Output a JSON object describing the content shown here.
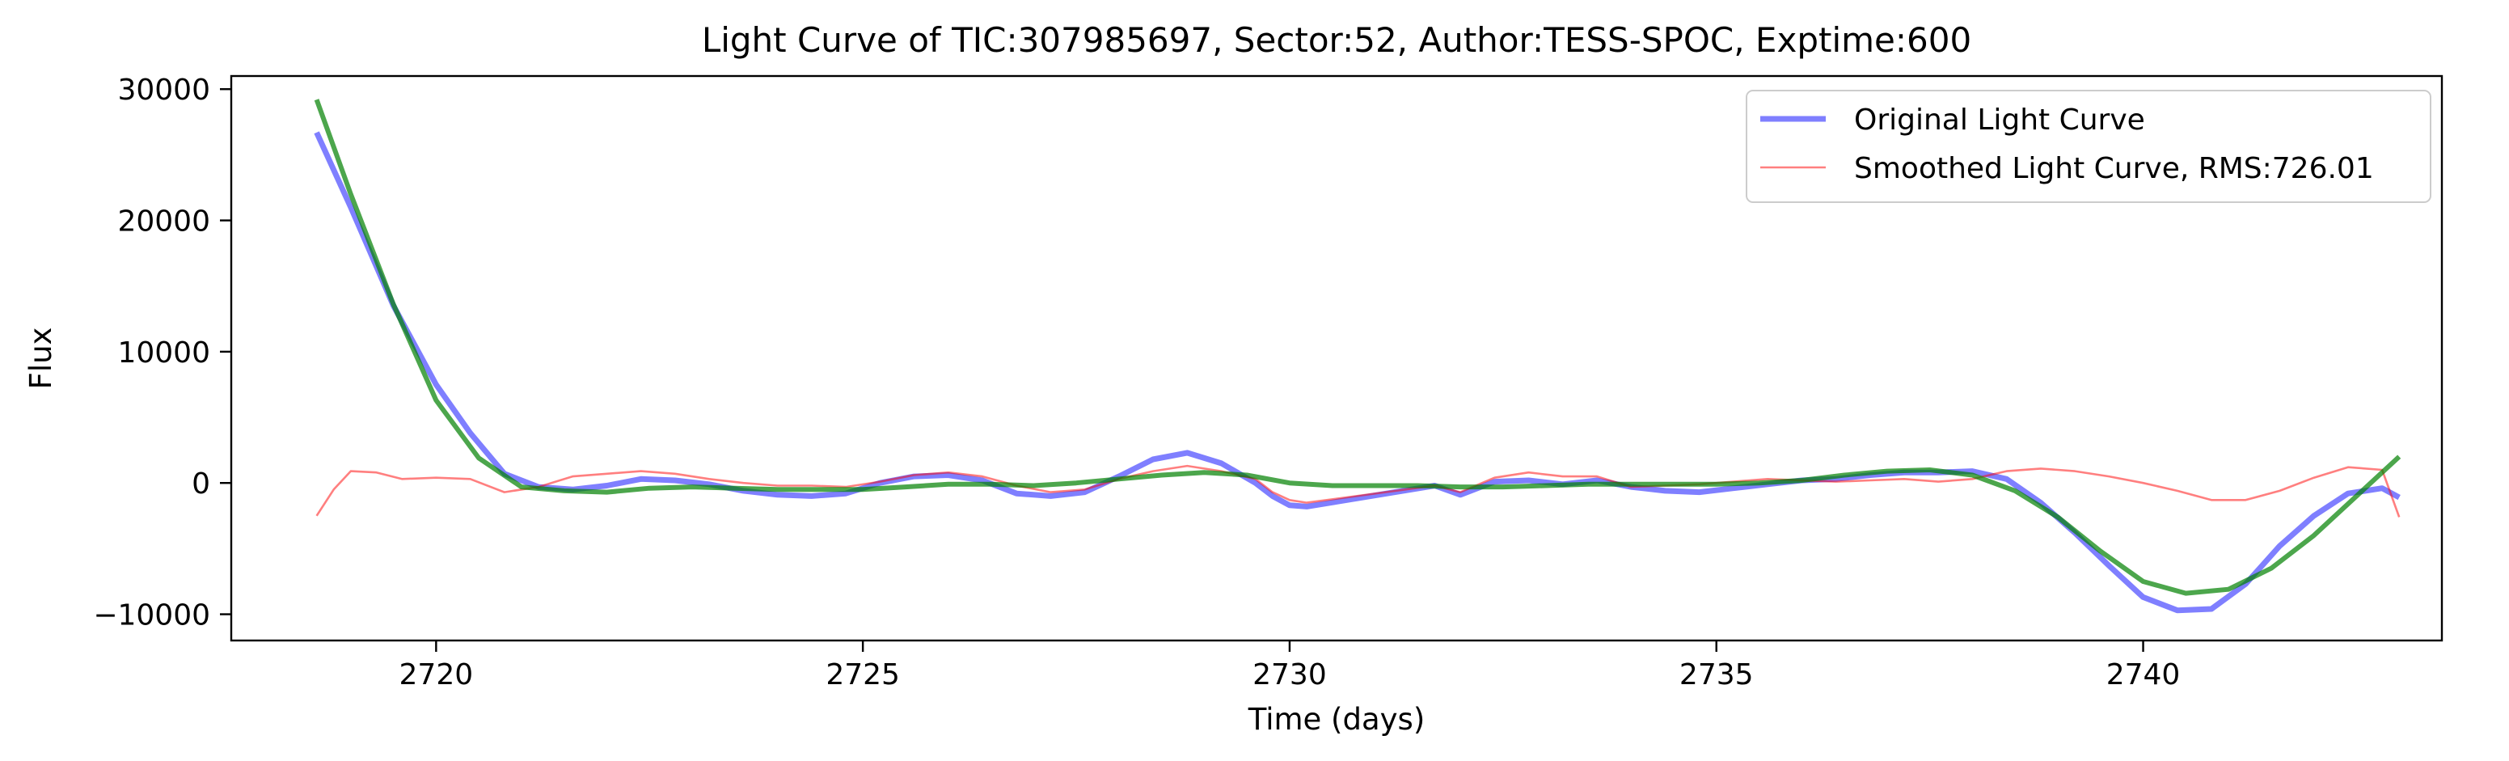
{
  "chart_data": {
    "type": "line",
    "title": "Light Curve of TIC:307985697, Sector:52, Author:TESS-SPOC, Exptime:600",
    "xlabel": "Time (days)",
    "ylabel": "Flux",
    "xlim": [
      2717.6,
      2743.5
    ],
    "ylim": [
      -12000,
      31000
    ],
    "xticks": [
      2720,
      2725,
      2730,
      2735,
      2740
    ],
    "yticks": [
      -10000,
      0,
      10000,
      20000,
      30000
    ],
    "xtick_labels": [
      "2720",
      "2725",
      "2730",
      "2735",
      "2740"
    ],
    "ytick_labels": [
      "−10000",
      "0",
      "10000",
      "20000",
      "30000"
    ],
    "grid": false,
    "legend_position": "upper right",
    "legend": [
      "Original Light Curve",
      "Smoothed Light Curve, RMS:726.01"
    ],
    "series": [
      {
        "name": "Original Light Curve",
        "color": "#0000ff",
        "opacity": 0.5,
        "x": [
          2718.6,
          2719.0,
          2719.5,
          2720.0,
          2720.4,
          2720.8,
          2721.2,
          2721.6,
          2722.0,
          2722.4,
          2722.8,
          2723.2,
          2723.6,
          2724.0,
          2724.4,
          2724.8,
          2725.2,
          2725.6,
          2726.0,
          2726.4,
          2726.8,
          2727.2,
          2727.6,
          2728.0,
          2728.4,
          2728.8,
          2729.2,
          2729.6,
          2729.8,
          2730.0,
          2730.2,
          2731.7,
          2732.0,
          2732.4,
          2732.8,
          2733.2,
          2733.6,
          2734.0,
          2734.4,
          2734.8,
          2735.2,
          2735.6,
          2736.0,
          2736.4,
          2736.8,
          2737.2,
          2737.6,
          2738.0,
          2738.4,
          2738.8,
          2739.2,
          2739.6,
          2740.0,
          2740.4,
          2740.8,
          2741.2,
          2741.6,
          2742.0,
          2742.4,
          2742.8,
          2743.0
        ],
        "y": [
          26700,
          21000,
          13500,
          7500,
          3800,
          700,
          -300,
          -500,
          -200,
          300,
          200,
          -100,
          -600,
          -900,
          -1000,
          -800,
          0,
          500,
          600,
          200,
          -800,
          -1000,
          -700,
          500,
          1800,
          2300,
          1500,
          0,
          -1000,
          -1700,
          -1800,
          -200,
          -900,
          100,
          200,
          -100,
          200,
          -300,
          -600,
          -700,
          -400,
          -100,
          200,
          300,
          600,
          800,
          800,
          900,
          300,
          -1500,
          -3800,
          -6300,
          -8700,
          -9700,
          -9600,
          -7700,
          -4800,
          -2500,
          -800,
          -400,
          -1100
        ]
      },
      {
        "name": "Smoothed Light Curve, RMS:726.01",
        "color": "#ff0000",
        "opacity": 0.5,
        "x": [
          2718.6,
          2718.8,
          2719.0,
          2719.3,
          2719.6,
          2720.0,
          2720.4,
          2720.8,
          2721.2,
          2721.6,
          2722.0,
          2722.4,
          2722.8,
          2723.2,
          2723.6,
          2724.0,
          2724.4,
          2724.8,
          2725.2,
          2725.6,
          2726.0,
          2726.4,
          2726.8,
          2727.2,
          2727.6,
          2728.0,
          2728.4,
          2728.8,
          2729.2,
          2729.6,
          2729.8,
          2730.0,
          2730.2,
          2731.7,
          2732.0,
          2732.4,
          2732.8,
          2733.2,
          2733.6,
          2734.0,
          2734.4,
          2734.8,
          2735.2,
          2735.6,
          2736.0,
          2736.4,
          2736.8,
          2737.2,
          2737.6,
          2738.0,
          2738.4,
          2738.8,
          2739.2,
          2739.6,
          2740.0,
          2740.4,
          2740.8,
          2741.2,
          2741.6,
          2742.0,
          2742.4,
          2742.8,
          2743.0
        ],
        "y": [
          -2500,
          -500,
          900,
          800,
          300,
          400,
          300,
          -700,
          -300,
          500,
          700,
          900,
          700,
          300,
          0,
          -200,
          -200,
          -300,
          100,
          600,
          800,
          500,
          -200,
          -700,
          -500,
          300,
          900,
          1300,
          900,
          300,
          -700,
          -1300,
          -1500,
          -200,
          -700,
          400,
          800,
          500,
          500,
          -300,
          -200,
          -100,
          100,
          300,
          200,
          100,
          200,
          300,
          100,
          300,
          900,
          1100,
          900,
          500,
          0,
          -600,
          -1300,
          -1300,
          -600,
          400,
          1200,
          1000,
          -2600
        ]
      },
      {
        "name": "",
        "color": "#008000",
        "opacity": 0.7,
        "x": [
          2718.6,
          2719.0,
          2719.5,
          2720.0,
          2720.5,
          2721.0,
          2721.5,
          2722.0,
          2722.5,
          2723.0,
          2723.5,
          2724.0,
          2724.5,
          2725.0,
          2725.5,
          2726.0,
          2726.5,
          2727.0,
          2727.5,
          2728.0,
          2728.5,
          2729.0,
          2729.5,
          2730.0,
          2730.5,
          2731.0,
          2731.5,
          2732.0,
          2732.5,
          2733.0,
          2733.5,
          2734.0,
          2734.5,
          2735.0,
          2735.5,
          2736.0,
          2736.5,
          2737.0,
          2737.5,
          2738.0,
          2738.5,
          2739.0,
          2739.5,
          2740.0,
          2740.5,
          2741.0,
          2741.5,
          2742.0,
          2742.5,
          2743.0
        ],
        "y": [
          29200,
          22000,
          13600,
          6300,
          1900,
          -300,
          -600,
          -700,
          -400,
          -300,
          -400,
          -500,
          -500,
          -500,
          -300,
          -100,
          -100,
          -200,
          0,
          300,
          600,
          800,
          600,
          0,
          -200,
          -200,
          -200,
          -300,
          -300,
          -200,
          -100,
          -100,
          -100,
          -100,
          0,
          200,
          600,
          900,
          1000,
          600,
          -600,
          -2600,
          -5200,
          -7500,
          -8400,
          -8100,
          -6500,
          -4000,
          -1000,
          2000
        ]
      }
    ]
  }
}
